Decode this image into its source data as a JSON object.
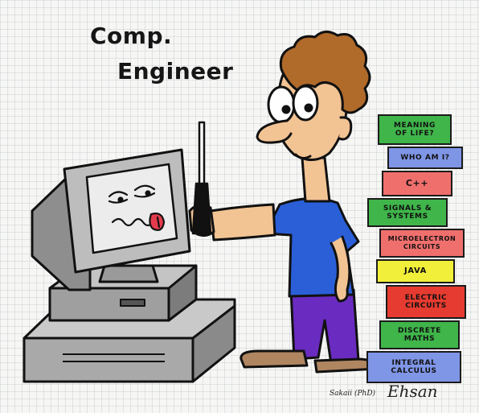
{
  "title": {
    "line1": "Comp.",
    "line2": "Engineer"
  },
  "books": [
    {
      "label": "MEANING\nOF LIFE?",
      "color": "#3fb54a"
    },
    {
      "label": "WHO AM I?",
      "color": "#7f95e6"
    },
    {
      "label": "C++",
      "color": "#ef6f6d"
    },
    {
      "label": "SIGNALS &\nSYSTEMS",
      "color": "#3fb54a"
    },
    {
      "label": "MICROELECTRON\nCIRCUITS",
      "color": "#ef6f6d"
    },
    {
      "label": "JAVA",
      "color": "#f1ef3a"
    },
    {
      "label": "ELECTRIC\nCIRCUITS",
      "color": "#e63b30"
    },
    {
      "label": "DISCRETE\nMATHS",
      "color": "#3fb54a"
    },
    {
      "label": "INTEGRAL\nCALCULUS",
      "color": "#7f95e6"
    }
  ],
  "signature": {
    "prefix": "Sakaii (PhD)",
    "name": "Ehsan"
  },
  "colors": {
    "shirt": "#2a5fd8",
    "pants": "#6a2bc0",
    "skin": "#f2c393",
    "hair": "#b06a2a",
    "computer": "#a8a8a8",
    "shoes": "#b08660"
  }
}
